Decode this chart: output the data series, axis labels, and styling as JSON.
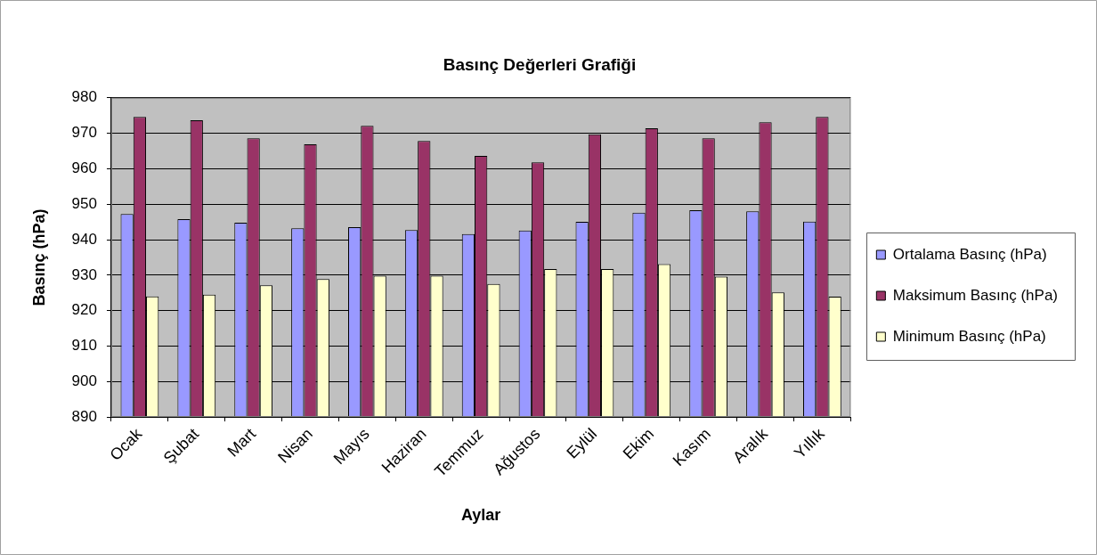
{
  "chart_data": {
    "type": "bar",
    "title": "Basınç Değerleri Grafiği",
    "xlabel": "Aylar",
    "ylabel": "Basınç (hPa)",
    "categories": [
      "Ocak",
      "Şubat",
      "Mart",
      "Nisan",
      "Mayıs",
      "Haziran",
      "Temmuz",
      "Ağustos",
      "Eylül",
      "Ekim",
      "Kasım",
      "Aralık",
      "Yıllık"
    ],
    "series": [
      {
        "name": "Ortalama Basınç (hPa)",
        "color": "#9999ff",
        "values": [
          947.2,
          945.8,
          944.8,
          943.2,
          943.5,
          942.7,
          941.6,
          942.6,
          945.0,
          947.6,
          948.3,
          948.0,
          945.1
        ]
      },
      {
        "name": "Maksimum Basınç (hPa)",
        "color": "#993366",
        "values": [
          974.6,
          973.7,
          968.6,
          966.9,
          972.1,
          967.8,
          963.6,
          961.8,
          969.7,
          971.4,
          968.6,
          973.1,
          974.6
        ]
      },
      {
        "name": "Minimum Basınç (hPa)",
        "color": "#ffffcc",
        "values": [
          924.0,
          924.5,
          927.1,
          928.9,
          929.8,
          929.8,
          927.5,
          931.7,
          931.7,
          933.1,
          929.6,
          925.1,
          923.9
        ]
      }
    ],
    "ylim": [
      890,
      980
    ],
    "yticks": [
      890,
      900,
      910,
      920,
      930,
      940,
      950,
      960,
      970,
      980
    ],
    "grid": "y",
    "legend": "right"
  }
}
